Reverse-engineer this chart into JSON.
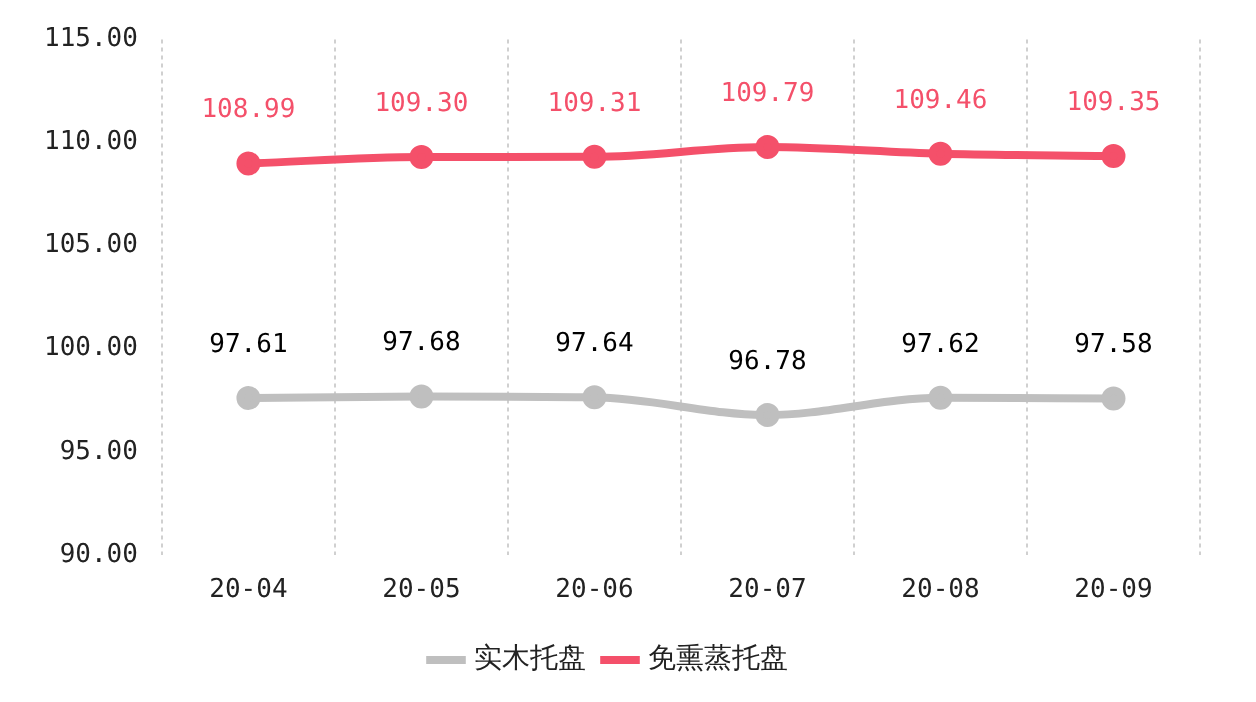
{
  "chart_data": {
    "type": "line",
    "categories": [
      "20-04",
      "20-05",
      "20-06",
      "20-07",
      "20-08",
      "20-09"
    ],
    "series": [
      {
        "name": "实木托盘",
        "color": "#bfbfbf",
        "values": [
          97.61,
          97.68,
          97.64,
          96.78,
          97.62,
          97.58
        ],
        "value_labels": [
          "97.61",
          "97.68",
          "97.64",
          "96.78",
          "97.62",
          "97.58"
        ]
      },
      {
        "name": "免熏蒸托盘",
        "color": "#f4506a",
        "values": [
          108.99,
          109.3,
          109.31,
          109.79,
          109.46,
          109.35
        ],
        "value_labels": [
          "108.99",
          "109.30",
          "109.31",
          "109.79",
          "109.46",
          "109.35"
        ]
      }
    ],
    "ylim": [
      90,
      115
    ],
    "yticks": [
      {
        "value": 90,
        "label": "90.00"
      },
      {
        "value": 95,
        "label": "95.00"
      },
      {
        "value": 100,
        "label": "100.00"
      },
      {
        "value": 105,
        "label": "105.00"
      },
      {
        "value": 110,
        "label": "110.00"
      },
      {
        "value": 115,
        "label": "115.00"
      }
    ],
    "grid": "x",
    "legend": "bottom",
    "marker": "circle",
    "line_style": "solid"
  }
}
